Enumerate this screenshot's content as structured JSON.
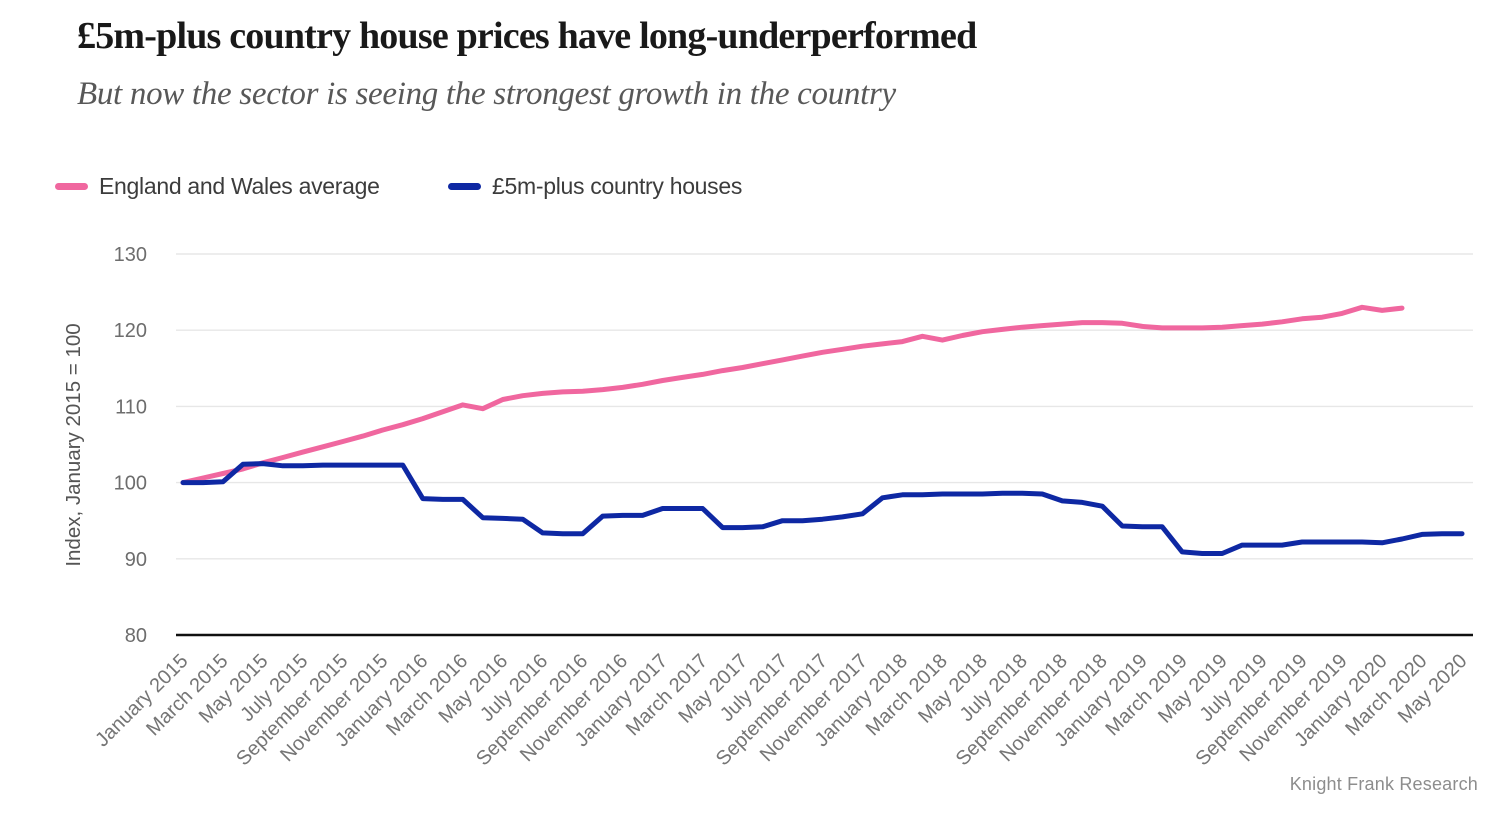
{
  "header": {
    "title": "£5m-plus country house prices have long-underperformed",
    "subtitle": "But now the sector is seeing the strongest growth in the country"
  },
  "legend": {
    "items": [
      {
        "label": "England and Wales average",
        "color": "#f0679f"
      },
      {
        "label": "£5m-plus country houses",
        "color": "#0e28a3"
      }
    ]
  },
  "source": "Knight Frank Research",
  "chart_data": {
    "type": "line",
    "title": "£5m-plus country house prices have long-underperformed",
    "subtitle": "But now the sector is seeing the strongest growth in the country",
    "ylabel": "Index, January 2015 = 100",
    "ylim": [
      80,
      130
    ],
    "yticks": [
      80,
      90,
      100,
      110,
      120,
      130
    ],
    "grid": "horizontal",
    "legend_position": "top",
    "x_note": "monthly data points starting January 2015; labels every two months",
    "x_tick_labels": [
      "January 2015",
      "March 2015",
      "May 2015",
      "July 2015",
      "September 2015",
      "November 2015",
      "January 2016",
      "March 2016",
      "May 2016",
      "July 2016",
      "September 2016",
      "November 2016",
      "January 2017",
      "March 2017",
      "May 2017",
      "July 2017",
      "September 2017",
      "November 2017",
      "January 2018",
      "March 2018",
      "May 2018",
      "July 2018",
      "September 2018",
      "November 2018",
      "January 2019",
      "March 2019",
      "May 2019",
      "July 2019",
      "September 2019",
      "November 2019",
      "January 2020",
      "March 2020",
      "May 2020"
    ],
    "series": [
      {
        "name": "England and Wales average",
        "color": "#f0679f",
        "first_month": "January 2015",
        "last_month": "February 2020",
        "values": [
          100.0,
          100.6,
          101.2,
          101.8,
          102.6,
          103.3,
          104.0,
          104.7,
          105.4,
          106.1,
          106.9,
          107.6,
          108.4,
          109.3,
          110.2,
          109.7,
          110.9,
          111.4,
          111.7,
          111.9,
          112.0,
          112.2,
          112.5,
          112.9,
          113.4,
          113.8,
          114.2,
          114.7,
          115.1,
          115.6,
          116.1,
          116.6,
          117.1,
          117.5,
          117.9,
          118.2,
          118.5,
          119.2,
          118.7,
          119.3,
          119.8,
          120.1,
          120.4,
          120.6,
          120.8,
          121.0,
          121.0,
          120.9,
          120.5,
          120.3,
          120.3,
          120.3,
          120.4,
          120.6,
          120.8,
          121.1,
          121.5,
          121.7,
          122.2,
          123.0,
          122.6,
          122.9
        ]
      },
      {
        "name": "£5m-plus country houses",
        "color": "#0e28a3",
        "first_month": "January 2015",
        "last_month": "May 2020",
        "values": [
          100.0,
          100.0,
          100.1,
          102.4,
          102.5,
          102.2,
          102.2,
          102.3,
          102.3,
          102.3,
          102.3,
          102.3,
          97.9,
          97.8,
          97.8,
          95.4,
          95.3,
          95.2,
          93.4,
          93.3,
          93.3,
          95.6,
          95.7,
          95.7,
          96.6,
          96.6,
          96.6,
          94.1,
          94.1,
          94.2,
          95.0,
          95.0,
          95.2,
          95.5,
          95.9,
          98.0,
          98.4,
          98.4,
          98.5,
          98.5,
          98.5,
          98.6,
          98.6,
          98.5,
          97.6,
          97.4,
          96.9,
          94.3,
          94.2,
          94.2,
          90.9,
          90.7,
          90.7,
          91.8,
          91.8,
          91.8,
          92.2,
          92.2,
          92.2,
          92.2,
          92.1,
          92.6,
          93.2,
          93.3,
          93.3
        ]
      }
    ],
    "source": "Knight Frank Research"
  }
}
